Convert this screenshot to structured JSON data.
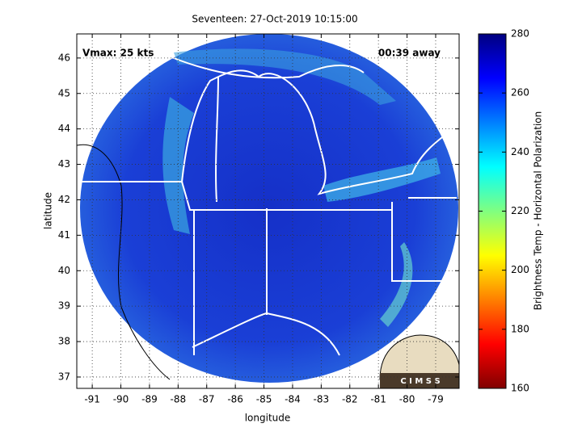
{
  "chart_data": {
    "type": "map",
    "title": "Seventeen: 27-Oct-2019 10:15:00",
    "annotations": [
      "Vmax: 25 kts",
      "00:39 away"
    ],
    "x_label": "longitude",
    "y_label": "latitude",
    "xlim": [
      -91.54,
      -78.18
    ],
    "ylim": [
      36.68,
      46.68
    ],
    "xticks": [
      -91,
      -90,
      -89,
      -88,
      -87,
      -86,
      -85,
      -84,
      -83,
      -82,
      -81,
      -80,
      -79
    ],
    "yticks": [
      37,
      38,
      39,
      40,
      41,
      42,
      43,
      44,
      45,
      46
    ],
    "grid": true,
    "colorbar": {
      "label": "Brightness Temp - Horizontal Polarization",
      "clim": [
        160,
        280
      ],
      "ticks": [
        160,
        180,
        200,
        220,
        240,
        260,
        280
      ]
    },
    "logo": "C I M S S"
  }
}
